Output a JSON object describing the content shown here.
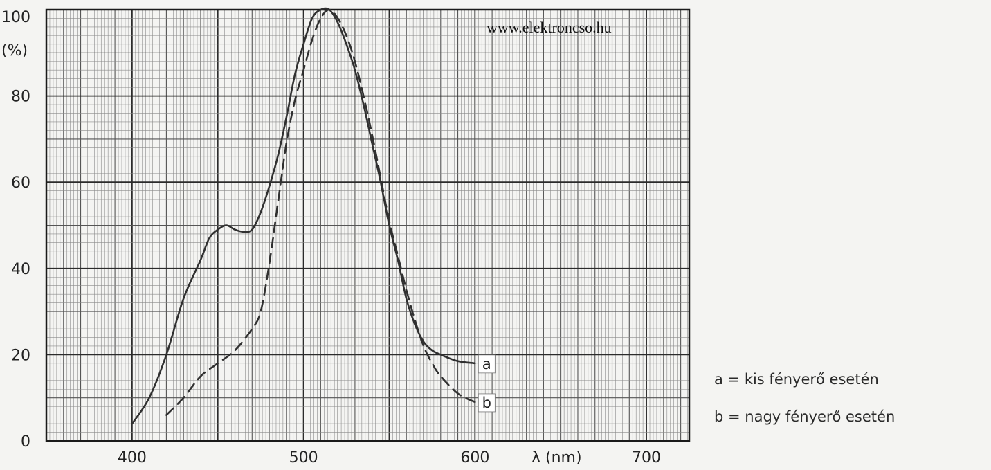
{
  "chart_data": {
    "type": "line",
    "title": "",
    "watermark": "www.elektroncso.hu",
    "xlabel": "λ (nm)",
    "ylabel": "(%)",
    "xlim": [
      350,
      725
    ],
    "ylim": [
      0,
      100
    ],
    "grid": true,
    "x_ticks": [
      {
        "value": 400,
        "label": "400"
      },
      {
        "value": 500,
        "label": "500"
      },
      {
        "value": 600,
        "label": "600"
      },
      {
        "value": 700,
        "label": "700"
      }
    ],
    "y_ticks": [
      {
        "value": 0,
        "label": "0"
      },
      {
        "value": 20,
        "label": "20"
      },
      {
        "value": 40,
        "label": "40"
      },
      {
        "value": 60,
        "label": "60"
      },
      {
        "value": 80,
        "label": "80"
      },
      {
        "value": 100,
        "label": "100"
      }
    ],
    "y_unit_label": "(%)",
    "series": [
      {
        "name": "a",
        "style": "solid",
        "x": [
          400,
          410,
          420,
          430,
          440,
          445,
          450,
          455,
          460,
          465,
          470,
          475,
          480,
          485,
          490,
          495,
          500,
          505,
          510,
          515,
          520,
          525,
          530,
          535,
          540,
          545,
          550,
          555,
          560,
          565,
          570,
          575,
          580,
          590,
          600
        ],
        "y": [
          4,
          10,
          20,
          33,
          42,
          47,
          49,
          50,
          49,
          48.5,
          49,
          53,
          59,
          66,
          75,
          85,
          92,
          98,
          100,
          100,
          97,
          92,
          86,
          78,
          69,
          60,
          50,
          42,
          33,
          27,
          23,
          21,
          20,
          18.5,
          18
        ]
      },
      {
        "name": "b",
        "style": "dashed",
        "x": [
          420,
          430,
          440,
          450,
          460,
          470,
          475,
          480,
          485,
          490,
          495,
          500,
          505,
          510,
          515,
          520,
          525,
          530,
          535,
          540,
          545,
          550,
          555,
          560,
          565,
          570,
          575,
          580,
          590,
          600
        ],
        "y": [
          6,
          10,
          15,
          18,
          21,
          26,
          30,
          41,
          55,
          69,
          79,
          86,
          93,
          98,
          100,
          98,
          94,
          88,
          80,
          71,
          61,
          51,
          43,
          35,
          28,
          22,
          18,
          15,
          11,
          9
        ]
      }
    ],
    "legend": [
      {
        "text": "a = kis fényerő esetén"
      },
      {
        "text": "b = nagy fényerő esetén"
      }
    ]
  }
}
